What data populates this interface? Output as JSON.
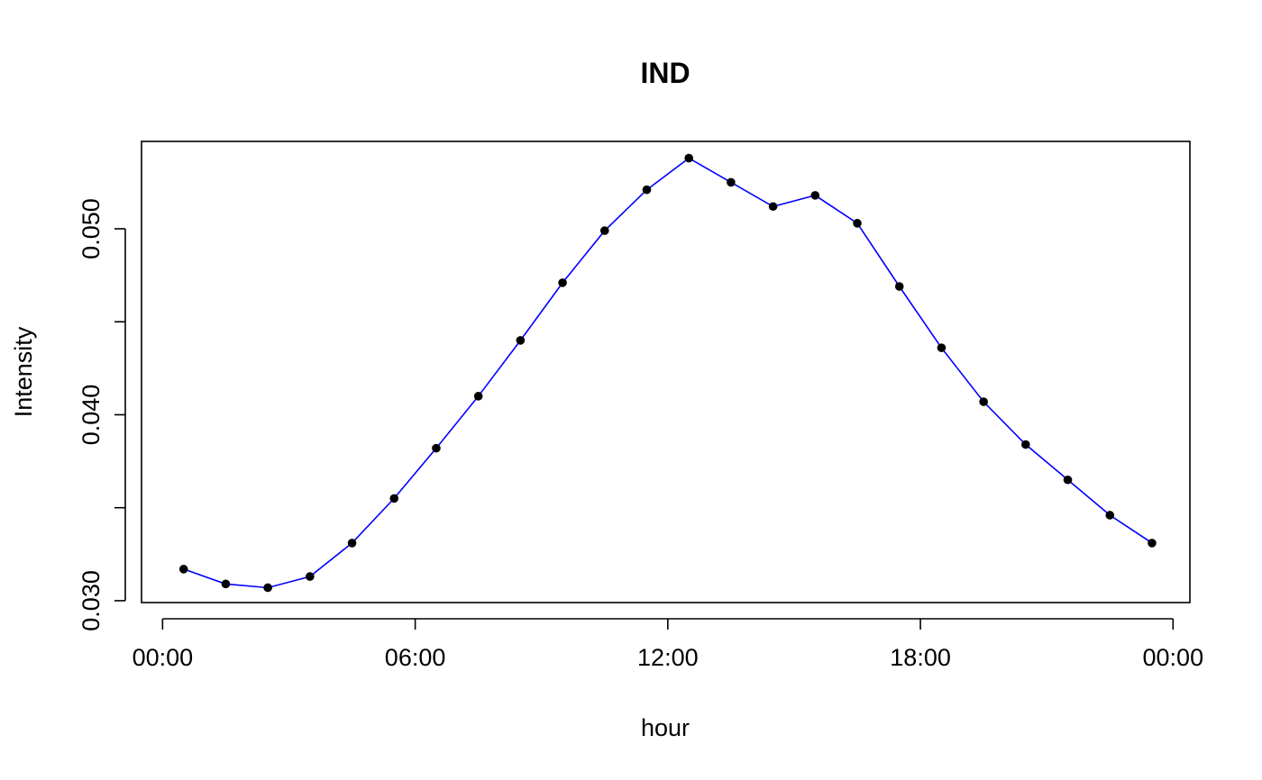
{
  "chart_data": {
    "type": "line",
    "title": "IND",
    "xlabel": "hour",
    "ylabel": "Intensity",
    "x_tick_values": [
      0,
      6,
      12,
      18,
      24
    ],
    "x_tick_labels": [
      "00:00",
      "06:00",
      "12:00",
      "18:00",
      "00:00"
    ],
    "y_tick_values": [
      0.03,
      0.04,
      0.05
    ],
    "y_tick_labels": [
      "0.030",
      "0.040",
      "0.050"
    ],
    "xlim": [
      -0.5,
      24.4
    ],
    "ylim": [
      0.0299,
      0.0547
    ],
    "grid": false,
    "legend": "none",
    "series": [
      {
        "color": "#0000ff",
        "point_color": "#000000",
        "x": [
          0.5,
          1.5,
          2.5,
          3.5,
          4.5,
          5.5,
          6.5,
          7.5,
          8.5,
          9.5,
          10.5,
          11.5,
          12.5,
          13.5,
          14.5,
          15.5,
          16.5,
          17.5,
          18.5,
          19.5,
          20.5,
          21.5,
          22.5,
          23.5
        ],
        "y": [
          0.0317,
          0.0309,
          0.0307,
          0.0313,
          0.0331,
          0.0355,
          0.0382,
          0.041,
          0.044,
          0.0471,
          0.0499,
          0.0521,
          0.0538,
          0.0525,
          0.0512,
          0.0518,
          0.0503,
          0.0469,
          0.0436,
          0.0407,
          0.0384,
          0.0365,
          0.0346,
          0.0331
        ]
      }
    ]
  }
}
